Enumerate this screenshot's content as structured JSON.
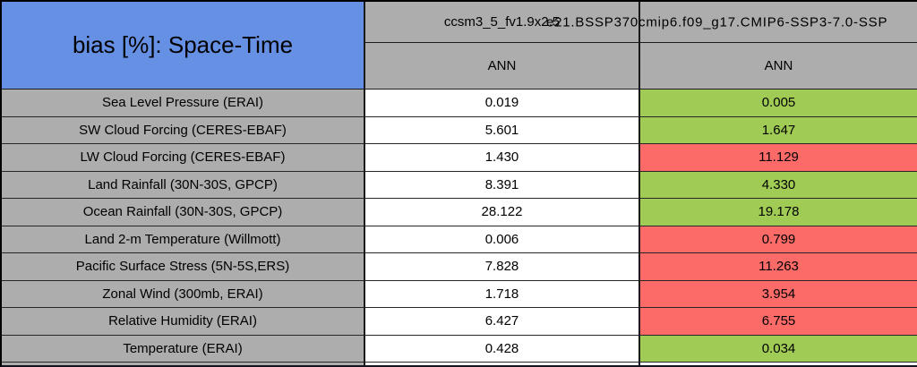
{
  "chart_data": {
    "type": "table",
    "title": "bias [%]: Space-Time",
    "columns": [
      {
        "model": "ccsm3_5_fv1.9x2.5",
        "season": "ANN"
      },
      {
        "model": "e21.BSSP370cmip6.f09_g17.CMIP6-SSP3-7.0-SSP",
        "season": "ANN"
      }
    ],
    "rows": [
      {
        "label": "Sea Level Pressure (ERAI)",
        "values": [
          "0.019",
          "0.005"
        ],
        "cell_colors": [
          "white",
          "green"
        ]
      },
      {
        "label": "SW Cloud Forcing (CERES-EBAF)",
        "values": [
          "5.601",
          "1.647"
        ],
        "cell_colors": [
          "white",
          "green"
        ]
      },
      {
        "label": "LW Cloud Forcing (CERES-EBAF)",
        "values": [
          "1.430",
          "11.129"
        ],
        "cell_colors": [
          "white",
          "red"
        ]
      },
      {
        "label": "Land Rainfall (30N-30S, GPCP)",
        "values": [
          "8.391",
          "4.330"
        ],
        "cell_colors": [
          "white",
          "green"
        ]
      },
      {
        "label": "Ocean Rainfall (30N-30S, GPCP)",
        "values": [
          "28.122",
          "19.178"
        ],
        "cell_colors": [
          "white",
          "green"
        ]
      },
      {
        "label": "Land 2-m Temperature (Willmott)",
        "values": [
          "0.006",
          "0.799"
        ],
        "cell_colors": [
          "white",
          "red"
        ]
      },
      {
        "label": "Pacific Surface Stress (5N-5S,ERS)",
        "values": [
          "7.828",
          "11.263"
        ],
        "cell_colors": [
          "white",
          "red"
        ]
      },
      {
        "label": "Zonal Wind (300mb, ERAI)",
        "values": [
          "1.718",
          "3.954"
        ],
        "cell_colors": [
          "white",
          "red"
        ]
      },
      {
        "label": "Relative Humidity (ERAI)",
        "values": [
          "6.427",
          "6.755"
        ],
        "cell_colors": [
          "white",
          "red"
        ]
      },
      {
        "label": "Temperature (ERAI)",
        "values": [
          "0.428",
          "0.034"
        ],
        "cell_colors": [
          "white",
          "green"
        ]
      }
    ]
  },
  "colors": {
    "title_bg": "#6590E3",
    "header_bg": "#ADADAD",
    "label_bg": "#ADADAD",
    "white": "#FFFFFF",
    "green": "#A0CC55",
    "red": "#FC6B68"
  }
}
